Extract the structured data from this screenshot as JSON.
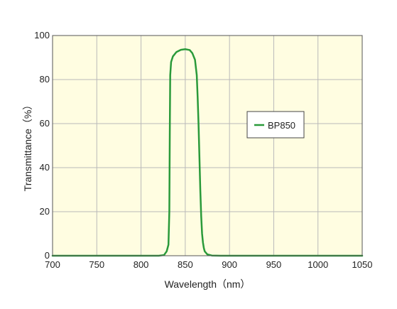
{
  "chart_data": {
    "type": "line",
    "title": "",
    "xlabel": "Wavelength（nm）",
    "ylabel": "Transmittance（%）",
    "xlim": [
      700,
      1050
    ],
    "ylim": [
      0,
      100
    ],
    "xticks": [
      700,
      750,
      800,
      850,
      900,
      950,
      1000,
      1050
    ],
    "yticks": [
      0,
      20,
      40,
      60,
      80,
      100
    ],
    "grid": true,
    "legend_position": "right",
    "plot_background": "#fffde1",
    "grid_color": "#b9b9b9",
    "series": [
      {
        "name": "BP850",
        "color": "#2a9a3a",
        "x": [
          700,
          820,
          826,
          829,
          831,
          832,
          832.5,
          833,
          834,
          836,
          840,
          845,
          850,
          855,
          858,
          861,
          863,
          864,
          865,
          866,
          867,
          868,
          869,
          870,
          871,
          872,
          875,
          880,
          890,
          1050
        ],
        "y": [
          0,
          0,
          0.3,
          2,
          5,
          20,
          55,
          82,
          88,
          90.5,
          92.5,
          93.5,
          93.8,
          93.4,
          92,
          89,
          82,
          72,
          60,
          45,
          30,
          18,
          10,
          6,
          3.5,
          2,
          0.6,
          0.1,
          0,
          0
        ]
      }
    ]
  }
}
